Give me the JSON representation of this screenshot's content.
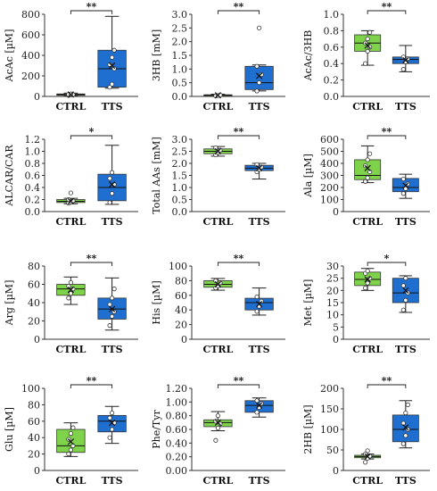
{
  "figure": {
    "colors": {
      "ctrl": "#7fd34a",
      "tts": "#1f6fd1",
      "axis": "#333333",
      "point": "#555555"
    },
    "chart_data": [
      {
        "type": "box",
        "ylabel": "AcAc [µM]",
        "ylim": [
          0,
          800
        ],
        "yticks": [
          "0",
          "200",
          "400",
          "600",
          "800"
        ],
        "categories": [
          "CTRL",
          "TTS"
        ],
        "significance": "**",
        "series": [
          {
            "min": 8,
            "q1": 13,
            "median": 18,
            "q3": 24,
            "max": 32,
            "mean": 19,
            "points": [
              10,
              14,
              17,
              20,
              25
            ]
          },
          {
            "min": 80,
            "q1": 90,
            "median": 270,
            "q3": 450,
            "max": 780,
            "mean": 300,
            "points": [
              90,
              120,
              270,
              310,
              380,
              450
            ]
          }
        ]
      },
      {
        "type": "box",
        "ylabel": "3HB [mM]",
        "ylim": [
          0,
          3.0
        ],
        "yticks": [
          "0.0",
          "0.5",
          "1.0",
          "1.5",
          "2.0",
          "2.5",
          "3.0"
        ],
        "categories": [
          "CTRL",
          "TTS"
        ],
        "significance": "**",
        "series": [
          {
            "min": 0.01,
            "q1": 0.02,
            "median": 0.04,
            "q3": 0.06,
            "max": 0.08,
            "mean": 0.04,
            "points": [
              0.02,
              0.03,
              0.05
            ]
          },
          {
            "min": 0.2,
            "q1": 0.25,
            "median": 0.5,
            "q3": 1.1,
            "max": 1.15,
            "mean": 0.75,
            "points": [
              0.2,
              0.5,
              0.8,
              1.1,
              2.5
            ]
          }
        ]
      },
      {
        "type": "box",
        "ylabel": "AcAc/3HB",
        "ylim": [
          0,
          1.0
        ],
        "yticks": [
          "0.0",
          "0.2",
          "0.4",
          "0.6",
          "0.8",
          "1.0"
        ],
        "categories": [
          "CTRL",
          "TTS"
        ],
        "significance": "**",
        "series": [
          {
            "min": 0.38,
            "q1": 0.55,
            "median": 0.65,
            "q3": 0.75,
            "max": 0.8,
            "mean": 0.62,
            "points": [
              0.4,
              0.55,
              0.6,
              0.65,
              0.7,
              0.78
            ]
          },
          {
            "min": 0.3,
            "q1": 0.4,
            "median": 0.45,
            "q3": 0.48,
            "max": 0.62,
            "mean": 0.44,
            "points": [
              0.33,
              0.42,
              0.46,
              0.48
            ]
          }
        ]
      },
      {
        "type": "box",
        "ylabel": "ALCAR/CAR",
        "ylim": [
          0,
          1.2
        ],
        "yticks": [
          "0.0",
          "0.2",
          "0.4",
          "0.6",
          "0.8",
          "1.0",
          "1.2"
        ],
        "categories": [
          "CTRL",
          "TTS"
        ],
        "significance": "*",
        "series": [
          {
            "min": 0.13,
            "q1": 0.15,
            "median": 0.17,
            "q3": 0.2,
            "max": 0.22,
            "mean": 0.17,
            "points": [
              0.14,
              0.16,
              0.18,
              0.2,
              0.31
            ]
          },
          {
            "min": 0.12,
            "q1": 0.18,
            "median": 0.4,
            "q3": 0.62,
            "max": 1.1,
            "mean": 0.45,
            "points": [
              0.15,
              0.3,
              0.45,
              0.55,
              0.65
            ]
          }
        ]
      },
      {
        "type": "box",
        "ylabel": "Total AAs [mM]",
        "ylim": [
          0,
          3.0
        ],
        "yticks": [
          "0.0",
          "0.5",
          "1.0",
          "1.5",
          "2.0",
          "2.5",
          "3.0"
        ],
        "categories": [
          "CTRL",
          "TTS"
        ],
        "significance": "**",
        "series": [
          {
            "min": 2.3,
            "q1": 2.4,
            "median": 2.5,
            "q3": 2.6,
            "max": 2.7,
            "mean": 2.5,
            "points": [
              2.35,
              2.45,
              2.55,
              2.65
            ]
          },
          {
            "min": 1.35,
            "q1": 1.7,
            "median": 1.8,
            "q3": 1.92,
            "max": 2.0,
            "mean": 1.8,
            "points": [
              1.65,
              1.75,
              1.85,
              1.95
            ]
          }
        ]
      },
      {
        "type": "box",
        "ylabel": "Ala [µM]",
        "ylim": [
          0,
          600
        ],
        "yticks": [
          "0",
          "100",
          "200",
          "300",
          "400",
          "500",
          "600"
        ],
        "categories": [
          "CTRL",
          "TTS"
        ],
        "significance": "**",
        "series": [
          {
            "min": 240,
            "q1": 265,
            "median": 300,
            "q3": 430,
            "max": 545,
            "mean": 360,
            "points": [
              250,
              280,
              330,
              380,
              430,
              480
            ]
          },
          {
            "min": 110,
            "q1": 165,
            "median": 200,
            "q3": 275,
            "max": 310,
            "mean": 215,
            "points": [
              150,
              190,
              230,
              270
            ]
          }
        ]
      },
      {
        "type": "box",
        "ylabel": "Arg [µM]",
        "ylim": [
          0,
          80
        ],
        "yticks": [
          "0",
          "20",
          "40",
          "60",
          "80"
        ],
        "categories": [
          "CTRL",
          "TTS"
        ],
        "significance": "**",
        "series": [
          {
            "min": 38,
            "q1": 48,
            "median": 55,
            "q3": 60,
            "max": 68,
            "mean": 54,
            "points": [
              45,
              50,
              55,
              58,
              62
            ]
          },
          {
            "min": 10,
            "q1": 22,
            "median": 33,
            "q3": 45,
            "max": 67,
            "mean": 33,
            "points": [
              15,
              25,
              30,
              38,
              45,
              55
            ]
          }
        ]
      },
      {
        "type": "box",
        "ylabel": "His [µM]",
        "ylim": [
          0,
          100
        ],
        "yticks": [
          "0",
          "20",
          "40",
          "60",
          "80",
          "100"
        ],
        "categories": [
          "CTRL",
          "TTS"
        ],
        "significance": "**",
        "series": [
          {
            "min": 67,
            "q1": 71,
            "median": 75,
            "q3": 80,
            "max": 83,
            "mean": 75,
            "points": [
              70,
              73,
              77,
              80
            ]
          },
          {
            "min": 33,
            "q1": 40,
            "median": 50,
            "q3": 56,
            "max": 70,
            "mean": 48,
            "points": [
              38,
              45,
              52,
              58
            ]
          }
        ]
      },
      {
        "type": "box",
        "ylabel": "Met [µM]",
        "ylim": [
          0,
          30
        ],
        "yticks": [
          "0",
          "5",
          "10",
          "15",
          "20",
          "25",
          "30"
        ],
        "categories": [
          "CTRL",
          "TTS"
        ],
        "significance": "*",
        "series": [
          {
            "min": 20,
            "q1": 22,
            "median": 24.5,
            "q3": 27.5,
            "max": 29,
            "mean": 24.5,
            "points": [
              21,
              23,
              25,
              27,
              28
            ]
          },
          {
            "min": 11,
            "q1": 15,
            "median": 19,
            "q3": 25,
            "max": 26,
            "mean": 20,
            "points": [
              12,
              16,
              19,
              22,
              25
            ]
          }
        ]
      },
      {
        "type": "box",
        "ylabel": "Glu [µM]",
        "ylim": [
          0,
          100
        ],
        "yticks": [
          "0",
          "20",
          "40",
          "60",
          "80",
          "100"
        ],
        "categories": [
          "CTRL",
          "TTS"
        ],
        "significance": "**",
        "series": [
          {
            "min": 17,
            "q1": 22,
            "median": 30,
            "q3": 50,
            "max": 58,
            "mean": 35,
            "points": [
              20,
              25,
              30,
              38,
              45,
              52
            ]
          },
          {
            "min": 33,
            "q1": 47,
            "median": 60,
            "q3": 67,
            "max": 78,
            "mean": 58,
            "points": [
              40,
              50,
              58,
              64,
              70
            ]
          }
        ]
      },
      {
        "type": "box",
        "ylabel": "Phe/Tyr",
        "ylim": [
          0,
          1.2
        ],
        "yticks": [
          "0.00",
          "0.20",
          "0.40",
          "0.60",
          "0.80",
          "1.00",
          "1.20"
        ],
        "categories": [
          "CTRL",
          "TTS"
        ],
        "significance": "**",
        "series": [
          {
            "min": 0.58,
            "q1": 0.64,
            "median": 0.7,
            "q3": 0.74,
            "max": 0.86,
            "mean": 0.7,
            "points": [
              0.44,
              0.62,
              0.68,
              0.72,
              0.8
            ]
          },
          {
            "min": 0.78,
            "q1": 0.85,
            "median": 0.95,
            "q3": 1.02,
            "max": 1.06,
            "mean": 0.95,
            "points": [
              0.85,
              0.92,
              0.98,
              1.02
            ]
          }
        ]
      },
      {
        "type": "box",
        "ylabel": "2HB [µM]",
        "ylim": [
          0,
          200
        ],
        "yticks": [
          "0",
          "50",
          "100",
          "150",
          "200"
        ],
        "categories": [
          "CTRL",
          "TTS"
        ],
        "significance": "**",
        "series": [
          {
            "min": 28,
            "q1": 31,
            "median": 34,
            "q3": 37,
            "max": 40,
            "mean": 34,
            "points": [
              20,
              30,
              35,
              40,
              48
            ]
          },
          {
            "min": 55,
            "q1": 70,
            "median": 100,
            "q3": 135,
            "max": 170,
            "mean": 105,
            "points": [
              65,
              85,
              100,
              115,
              140,
              160
            ]
          }
        ]
      }
    ]
  }
}
